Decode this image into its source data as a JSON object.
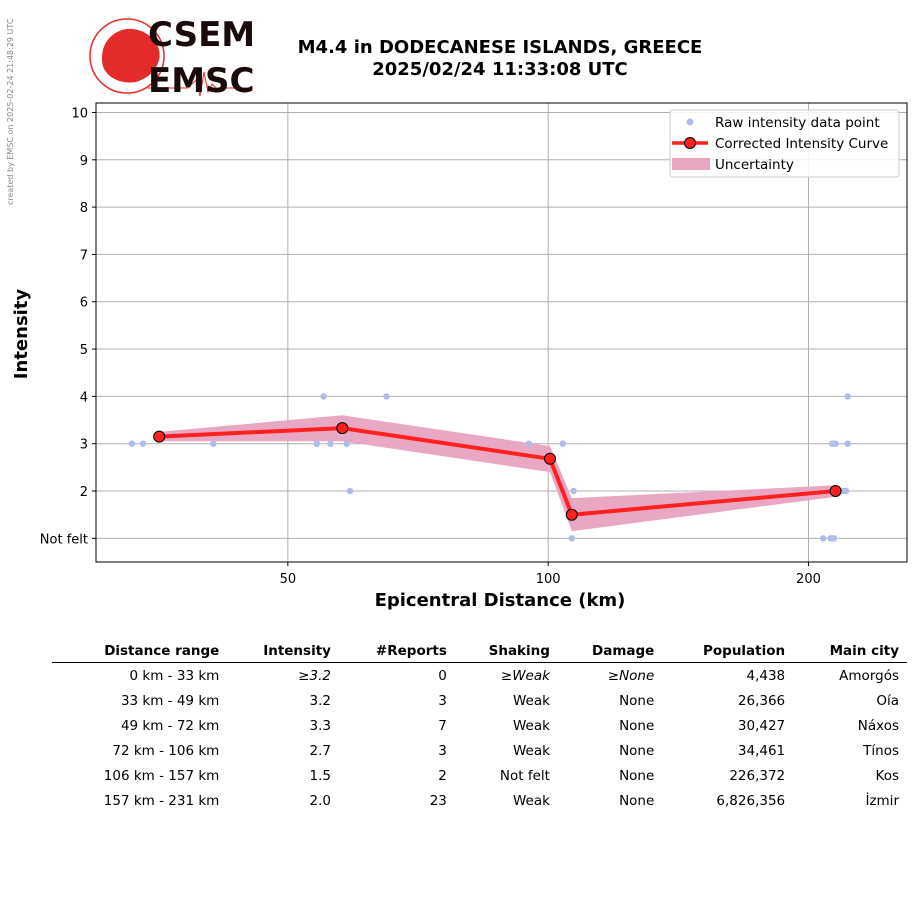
{
  "credit": "created by EMSC on 2025-02-24 21:48:29 UTC",
  "logo": {
    "line1": "CSEM",
    "line2": "EMSC",
    "brand_color": "#e32b2b",
    "text_color": "#1a0a0a"
  },
  "title": {
    "line1": "M4.4 in DODECANESE ISLANDS, GREECE",
    "line2": "2025/02/24 11:33:08 UTC"
  },
  "chart_data": {
    "type": "scatter",
    "xlabel": "Epicentral Distance (km)",
    "ylabel": "Intensity",
    "x_scale": "log",
    "xlim": [
      30,
      260
    ],
    "ylim": [
      0.5,
      10.2
    ],
    "x_ticks": [
      50,
      100,
      200
    ],
    "y_ticks": [
      {
        "v": 1,
        "label": "Not felt"
      },
      {
        "v": 2,
        "label": "2"
      },
      {
        "v": 3,
        "label": "3"
      },
      {
        "v": 4,
        "label": "4"
      },
      {
        "v": 5,
        "label": "5"
      },
      {
        "v": 6,
        "label": "6"
      },
      {
        "v": 7,
        "label": "7"
      },
      {
        "v": 8,
        "label": "8"
      },
      {
        "v": 9,
        "label": "9"
      },
      {
        "v": 10,
        "label": "10"
      }
    ],
    "grid": true,
    "legend_position": "top-right",
    "colors": {
      "raw": "#aebde8",
      "curve": "#ff2020",
      "uncertainty": "#e8a8c4",
      "marker_edge": "#000000"
    },
    "series": [
      {
        "name": "Raw intensity data point",
        "kind": "points",
        "points": [
          [
            33,
            3
          ],
          [
            34,
            3
          ],
          [
            41,
            3
          ],
          [
            55,
            4
          ],
          [
            54,
            3
          ],
          [
            56,
            3
          ],
          [
            58.5,
            3
          ],
          [
            59,
            2
          ],
          [
            65,
            4
          ],
          [
            95,
            3
          ],
          [
            104,
            3
          ],
          [
            106.5,
            1
          ],
          [
            107,
            2
          ],
          [
            208,
            1
          ],
          [
            212,
            1
          ],
          [
            213,
            1
          ],
          [
            214,
            1
          ],
          [
            213,
            3
          ],
          [
            214,
            3
          ],
          [
            215,
            3
          ],
          [
            215,
            2
          ],
          [
            217,
            2
          ],
          [
            219,
            2
          ],
          [
            221,
            2
          ],
          [
            222,
            3
          ],
          [
            222,
            4
          ]
        ]
      },
      {
        "name": "Corrected Intensity Curve",
        "kind": "line",
        "points": [
          [
            35.5,
            3.15
          ],
          [
            57.8,
            3.33
          ],
          [
            100.5,
            2.68
          ],
          [
            106.5,
            1.5
          ],
          [
            215,
            2.0
          ]
        ]
      },
      {
        "name": "Uncertainty",
        "kind": "band",
        "lower": [
          3.05,
          3.05,
          2.4,
          1.15,
          1.88
        ],
        "upper": [
          3.25,
          3.6,
          2.95,
          1.85,
          2.12
        ]
      }
    ]
  },
  "table": {
    "headers": [
      "Distance range",
      "Intensity",
      "#Reports",
      "Shaking",
      "Damage",
      "Population",
      "Main city"
    ],
    "rows": [
      {
        "range": "0 km -   33 km",
        "intensity": "3.2",
        "reports": "0",
        "shaking": "Weak",
        "damage": "None",
        "population": "4,438",
        "city": "Amorgós",
        "lower_bound": true
      },
      {
        "range": "33 km -   49 km",
        "intensity": "3.2",
        "reports": "3",
        "shaking": "Weak",
        "damage": "None",
        "population": "26,366",
        "city": "Oía",
        "lower_bound": false
      },
      {
        "range": "49 km -   72 km",
        "intensity": "3.3",
        "reports": "7",
        "shaking": "Weak",
        "damage": "None",
        "population": "30,427",
        "city": "Náxos",
        "lower_bound": false
      },
      {
        "range": "72 km -  106 km",
        "intensity": "2.7",
        "reports": "3",
        "shaking": "Weak",
        "damage": "None",
        "population": "34,461",
        "city": "Tínos",
        "lower_bound": false
      },
      {
        "range": "106 km -  157 km",
        "intensity": "1.5",
        "reports": "2",
        "shaking": "Not felt",
        "damage": "None",
        "population": "226,372",
        "city": "Kos",
        "lower_bound": false
      },
      {
        "range": "157 km -  231 km",
        "intensity": "2.0",
        "reports": "23",
        "shaking": "Weak",
        "damage": "None",
        "population": "6,826,356",
        "city": "İzmir",
        "lower_bound": false
      }
    ]
  }
}
